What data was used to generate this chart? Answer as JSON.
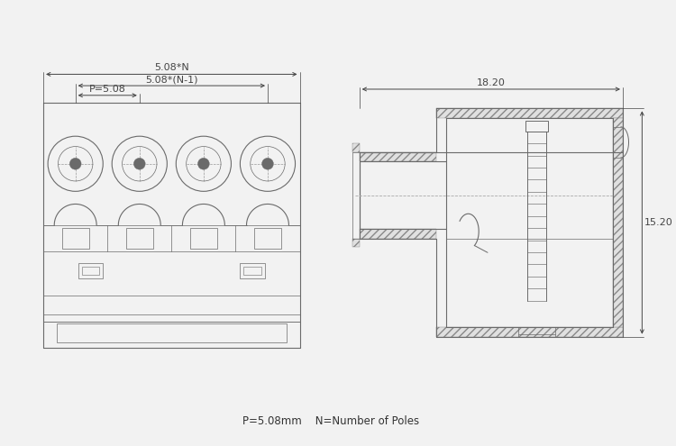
{
  "bg_color": "#f2f2f2",
  "line_color": "#6a6a6a",
  "dim_color": "#444444",
  "text_color": "#333333",
  "fig_width": 7.5,
  "fig_height": 4.95,
  "dpi": 100,
  "footnote": "P=5.08mm    N=Number of Poles",
  "dim_labels": {
    "top1": "5.08*N",
    "top2": "5.08*(N-1)",
    "top3": "P=5.08",
    "right_w": "18.20",
    "right_h": "15.20"
  },
  "n_poles": 4
}
